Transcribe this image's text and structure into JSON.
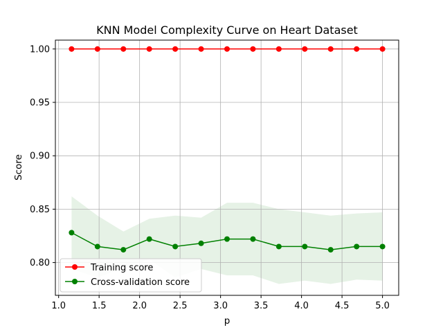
{
  "chart_data": {
    "type": "line",
    "title": "KNN Model Complexity Curve on Heart Dataset",
    "xlabel": "p",
    "ylabel": "Score",
    "xlim": [
      0.96,
      5.2
    ],
    "ylim": [
      0.7693,
      1.0083
    ],
    "xticks": [
      1.0,
      1.5,
      2.0,
      2.5,
      3.0,
      3.5,
      4.0,
      4.5,
      5.0
    ],
    "xtick_labels": [
      "1.0",
      "1.5",
      "2.0",
      "2.5",
      "3.0",
      "3.5",
      "4.0",
      "4.5",
      "5.0"
    ],
    "yticks": [
      0.8,
      0.85,
      0.9,
      0.95,
      1.0
    ],
    "ytick_labels": [
      "0.80",
      "0.85",
      "0.90",
      "0.95",
      "1.00"
    ],
    "grid": true,
    "legend_position": "lower-left",
    "x": [
      1.16,
      1.48,
      1.8,
      2.12,
      2.44,
      2.76,
      3.08,
      3.4,
      3.72,
      4.04,
      4.36,
      4.68,
      5.0
    ],
    "series": [
      {
        "name": "Training score",
        "color": "#ff0000",
        "values": [
          1.0,
          1.0,
          1.0,
          1.0,
          1.0,
          1.0,
          1.0,
          1.0,
          1.0,
          1.0,
          1.0,
          1.0,
          1.0
        ]
      },
      {
        "name": "Cross-validation score",
        "color": "#008000",
        "band_color": "#e6f2e6",
        "values": [
          0.828,
          0.815,
          0.812,
          0.822,
          0.815,
          0.818,
          0.822,
          0.822,
          0.815,
          0.815,
          0.812,
          0.815,
          0.815
        ],
        "band_upper": [
          0.862,
          0.844,
          0.829,
          0.841,
          0.844,
          0.842,
          0.856,
          0.856,
          0.85,
          0.847,
          0.844,
          0.846,
          0.847
        ],
        "band_lower": [
          0.794,
          0.786,
          0.795,
          0.803,
          0.786,
          0.794,
          0.788,
          0.788,
          0.78,
          0.783,
          0.78,
          0.784,
          0.783
        ]
      }
    ]
  }
}
